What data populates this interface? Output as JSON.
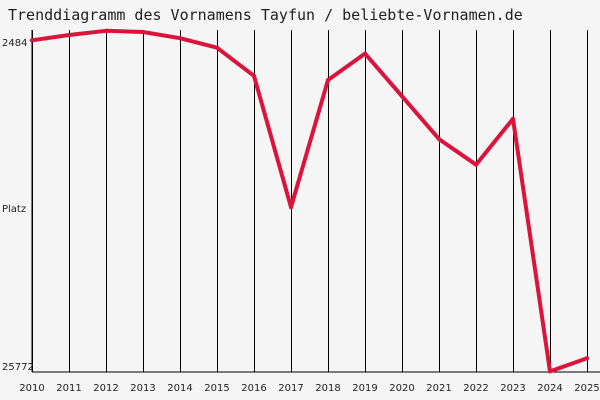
{
  "title": "Trenddiagramm des Vornamens Tayfun / beliebte-Vornamen.de",
  "chart_data": {
    "type": "line",
    "title": "Trenddiagramm des Vornamens Tayfun / beliebte-Vornamen.de",
    "xlabel": "",
    "ylabel": "Platz",
    "y_inverted": true,
    "ylim": [
      2484,
      25772
    ],
    "y_tick_labels": [
      "2484",
      "Platz",
      "25772"
    ],
    "x": [
      2010,
      2011,
      2012,
      2013,
      2014,
      2015,
      2016,
      2017,
      2018,
      2019,
      2020,
      2021,
      2022,
      2023,
      2024,
      2025
    ],
    "series": [
      {
        "color": "#dc143c",
        "points": [
          {
            "x": 2010,
            "y": 3120
          },
          {
            "x": 2011,
            "y": 2760
          },
          {
            "x": 2012,
            "y": 2470
          },
          {
            "x": 2013,
            "y": 2550
          },
          {
            "x": 2014,
            "y": 2980
          },
          {
            "x": 2015,
            "y": 3630
          },
          {
            "x": 2016,
            "y": 5560
          },
          {
            "x": 2017,
            "y": 14550
          },
          {
            "x": 2018,
            "y": 5840
          },
          {
            "x": 2019,
            "y": 4030
          },
          {
            "x": 2020,
            "y": 6950
          },
          {
            "x": 2021,
            "y": 9890
          },
          {
            "x": 2022,
            "y": 11640
          },
          {
            "x": 2023,
            "y": 8500
          },
          {
            "x": 2024,
            "y": 25800
          },
          {
            "x": 2025,
            "y": 24900
          }
        ]
      }
    ],
    "grid": {
      "vertical": true,
      "horizontal": false
    },
    "line_color": "#dc143c",
    "grid_color": "#000000",
    "background": "#f5f5f5"
  }
}
